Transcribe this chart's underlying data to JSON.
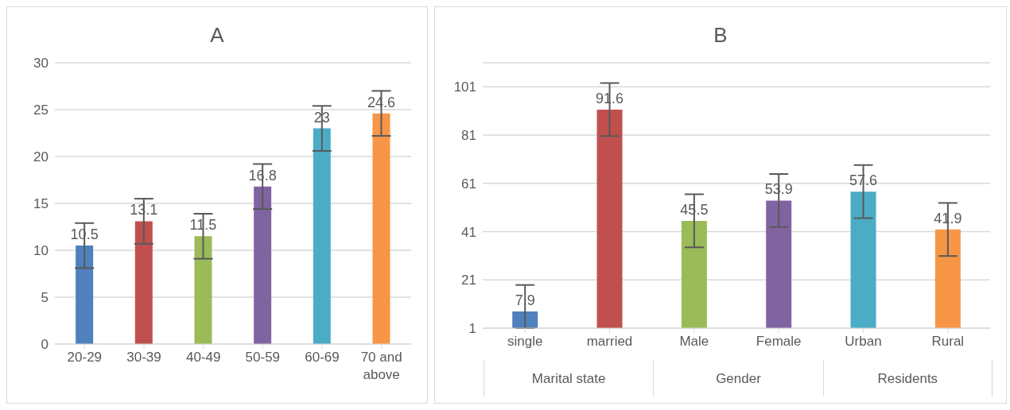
{
  "chart_data": [
    {
      "type": "bar",
      "title": "A",
      "categories": [
        "20-29",
        "30-39",
        "40-49",
        "50-59",
        "60-69",
        "70 and above"
      ],
      "values": [
        10.5,
        13.1,
        11.5,
        16.8,
        23,
        24.6
      ],
      "colors": [
        "#4f81bd",
        "#c0504d",
        "#9bbb59",
        "#8064a2",
        "#4bacc6",
        "#f79646"
      ],
      "errors": [
        2.4,
        2.4,
        2.4,
        2.4,
        2.4,
        2.4
      ],
      "ylim": [
        0,
        30
      ],
      "yticks": [
        0,
        5,
        10,
        15,
        20,
        25,
        30
      ],
      "grid": "y",
      "data_labels": true
    },
    {
      "type": "bar",
      "title": "B",
      "categories": [
        "single",
        "married",
        "Male",
        "Female",
        "Urban",
        "Rural"
      ],
      "values": [
        7.9,
        91.6,
        45.5,
        53.9,
        57.6,
        41.9
      ],
      "colors": [
        "#4f81bd",
        "#c0504d",
        "#9bbb59",
        "#8064a2",
        "#4bacc6",
        "#f79646"
      ],
      "errors": [
        [
          1,
          18.9
        ],
        11,
        11,
        11,
        11,
        11
      ],
      "ylim": [
        1,
        111
      ],
      "yticks": [
        1,
        21,
        41,
        61,
        81,
        101
      ],
      "grid": "y",
      "data_labels": true,
      "annotations": [
        "Marital state",
        "Gender",
        "Residents"
      ]
    }
  ]
}
